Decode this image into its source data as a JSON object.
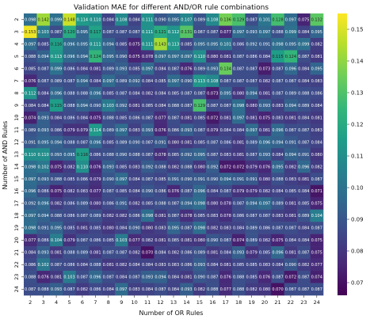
{
  "chart_data": {
    "type": "heatmap",
    "title": "Validation MAE for different AND/OR rule combinations",
    "xlabel": "Number of OR Rules",
    "ylabel": "Number of AND Rules",
    "x_ticks": [
      2,
      3,
      4,
      5,
      6,
      7,
      8,
      9,
      10,
      11,
      12,
      13,
      14,
      15,
      16,
      17,
      18,
      19,
      20,
      21,
      22,
      23,
      24
    ],
    "y_ticks": [
      2,
      3,
      4,
      5,
      6,
      7,
      8,
      9,
      10,
      11,
      12,
      13,
      14,
      15,
      16,
      17,
      18,
      19,
      20,
      21,
      22,
      23,
      24
    ],
    "colorbar_ticks": [
      0.07,
      0.08,
      0.09,
      0.1,
      0.11,
      0.12,
      0.13,
      0.14,
      0.15
    ],
    "colormap": "viridis",
    "vmin": 0.066,
    "vmax": 0.155,
    "values": [
      [
        0.098,
        0.142,
        0.099,
        0.148,
        0.114,
        0.11,
        0.084,
        0.108,
        0.084,
        0.111,
        0.09,
        0.095,
        0.107,
        0.089,
        0.108,
        0.136,
        0.129,
        0.087,
        0.101,
        0.128,
        0.097,
        0.075,
        0.132
      ],
      [
        0.153,
        0.103,
        0.087,
        0.12,
        0.095,
        0.117,
        0.087,
        0.087,
        0.087,
        0.111,
        0.121,
        0.112,
        0.131,
        0.087,
        0.087,
        0.077,
        0.097,
        0.093,
        0.097,
        0.088,
        0.099,
        0.084,
        0.095
      ],
      [
        0.097,
        0.085,
        0.116,
        0.096,
        0.095,
        0.111,
        0.094,
        0.085,
        0.075,
        0.111,
        0.143,
        0.113,
        0.085,
        0.095,
        0.095,
        0.101,
        0.086,
        0.092,
        0.091,
        0.098,
        0.095,
        0.099,
        0.082
      ],
      [
        0.088,
        0.094,
        0.113,
        0.096,
        0.094,
        0.124,
        0.095,
        0.09,
        0.075,
        0.078,
        0.097,
        0.097,
        0.097,
        0.11,
        0.08,
        0.081,
        0.087,
        0.086,
        0.084,
        0.115,
        0.124,
        0.087,
        0.081
      ],
      [
        0.085,
        0.087,
        0.099,
        0.086,
        0.084,
        0.081,
        0.089,
        0.093,
        0.085,
        0.097,
        0.084,
        0.087,
        0.076,
        0.089,
        0.093,
        0.134,
        0.087,
        0.087,
        0.073,
        0.087,
        0.096,
        0.084,
        0.095
      ],
      [
        0.076,
        0.087,
        0.089,
        0.087,
        0.094,
        0.084,
        0.097,
        0.089,
        0.092,
        0.084,
        0.085,
        0.097,
        0.09,
        0.113,
        0.108,
        0.087,
        0.087,
        0.087,
        0.082,
        0.087,
        0.087,
        0.084,
        0.083
      ],
      [
        0.112,
        0.084,
        0.096,
        0.088,
        0.088,
        0.096,
        0.085,
        0.087,
        0.084,
        0.082,
        0.084,
        0.085,
        0.087,
        0.087,
        0.073,
        0.095,
        0.08,
        0.094,
        0.081,
        0.087,
        0.089,
        0.088,
        0.086
      ],
      [
        0.084,
        0.084,
        0.115,
        0.088,
        0.094,
        0.09,
        0.103,
        0.092,
        0.081,
        0.085,
        0.084,
        0.088,
        0.087,
        0.129,
        0.087,
        0.087,
        0.098,
        0.08,
        0.093,
        0.083,
        0.094,
        0.089,
        0.084
      ],
      [
        0.074,
        0.093,
        0.084,
        0.086,
        0.084,
        0.075,
        0.088,
        0.085,
        0.086,
        0.087,
        0.077,
        0.087,
        0.081,
        0.085,
        0.072,
        0.081,
        0.097,
        0.081,
        0.075,
        0.083,
        0.081,
        0.084,
        0.081
      ],
      [
        0.089,
        0.093,
        0.086,
        0.079,
        0.079,
        0.114,
        0.089,
        0.097,
        0.083,
        0.093,
        0.076,
        0.086,
        0.093,
        0.087,
        0.079,
        0.084,
        0.084,
        0.097,
        0.081,
        0.096,
        0.087,
        0.087,
        0.083
      ],
      [
        0.091,
        0.095,
        0.094,
        0.088,
        0.087,
        0.096,
        0.085,
        0.089,
        0.09,
        0.087,
        0.091,
        0.08,
        0.081,
        0.085,
        0.087,
        0.086,
        0.081,
        0.089,
        0.096,
        0.094,
        0.091,
        0.087,
        0.084
      ],
      [
        0.11,
        0.11,
        0.093,
        0.095,
        0.116,
        0.086,
        0.088,
        0.09,
        0.088,
        0.087,
        0.078,
        0.085,
        0.092,
        0.095,
        0.087,
        0.083,
        0.081,
        0.087,
        0.093,
        0.084,
        0.094,
        0.091,
        0.08
      ],
      [
        0.098,
        0.102,
        0.075,
        0.082,
        0.11,
        0.076,
        0.093,
        0.085,
        0.083,
        0.092,
        0.088,
        0.082,
        0.088,
        0.08,
        0.092,
        0.072,
        0.072,
        0.079,
        0.076,
        0.095,
        0.082,
        0.096,
        0.082
      ],
      [
        0.097,
        0.093,
        0.088,
        0.085,
        0.086,
        0.079,
        0.09,
        0.097,
        0.084,
        0.087,
        0.085,
        0.091,
        0.09,
        0.091,
        0.09,
        0.094,
        0.091,
        0.091,
        0.08,
        0.088,
        0.083,
        0.081,
        0.087
      ],
      [
        0.096,
        0.086,
        0.075,
        0.082,
        0.083,
        0.077,
        0.087,
        0.085,
        0.084,
        0.09,
        0.086,
        0.076,
        0.087,
        0.096,
        0.084,
        0.087,
        0.079,
        0.079,
        0.082,
        0.084,
        0.085,
        0.084,
        0.071
      ],
      [
        0.092,
        0.096,
        0.082,
        0.086,
        0.089,
        0.08,
        0.086,
        0.091,
        0.082,
        0.085,
        0.088,
        0.087,
        0.094,
        0.098,
        0.08,
        0.078,
        0.087,
        0.094,
        0.097,
        0.089,
        0.081,
        0.085,
        0.075
      ],
      [
        0.097,
        0.094,
        0.088,
        0.086,
        0.087,
        0.089,
        0.082,
        0.082,
        0.086,
        0.098,
        0.081,
        0.087,
        0.078,
        0.085,
        0.083,
        0.078,
        0.086,
        0.087,
        0.087,
        0.083,
        0.081,
        0.089,
        0.104
      ],
      [
        0.098,
        0.091,
        0.095,
        0.085,
        0.081,
        0.085,
        0.08,
        0.084,
        0.09,
        0.08,
        0.083,
        0.095,
        0.087,
        0.098,
        0.082,
        0.083,
        0.084,
        0.089,
        0.086,
        0.087,
        0.087,
        0.084,
        0.087
      ],
      [
        0.077,
        0.086,
        0.104,
        0.079,
        0.087,
        0.086,
        0.085,
        0.103,
        0.077,
        0.082,
        0.081,
        0.085,
        0.081,
        0.08,
        0.09,
        0.087,
        0.074,
        0.089,
        0.082,
        0.075,
        0.084,
        0.084,
        0.075
      ],
      [
        0.084,
        0.093,
        0.081,
        0.088,
        0.089,
        0.081,
        0.087,
        0.087,
        0.082,
        0.07,
        0.084,
        0.082,
        0.086,
        0.089,
        0.081,
        0.084,
        0.093,
        0.079,
        0.085,
        0.096,
        0.081,
        0.087,
        0.075
      ],
      [
        0.086,
        0.102,
        0.087,
        0.086,
        0.084,
        0.088,
        0.081,
        0.082,
        0.084,
        0.084,
        0.083,
        0.083,
        0.086,
        0.093,
        0.084,
        0.081,
        0.085,
        0.085,
        0.083,
        0.084,
        0.09,
        0.082,
        0.077
      ],
      [
        0.088,
        0.076,
        0.081,
        0.103,
        0.087,
        0.096,
        0.087,
        0.084,
        0.087,
        0.093,
        0.094,
        0.084,
        0.081,
        0.09,
        0.087,
        0.076,
        0.088,
        0.085,
        0.076,
        0.087,
        0.072,
        0.087,
        0.074
      ],
      [
        0.087,
        0.088,
        0.093,
        0.087,
        0.082,
        0.086,
        0.084,
        0.097,
        0.083,
        0.084,
        0.087,
        0.084,
        0.093,
        0.082,
        0.088,
        0.077,
        0.088,
        0.082,
        0.08,
        0.07,
        0.087,
        0.087,
        0.087
      ]
    ]
  }
}
